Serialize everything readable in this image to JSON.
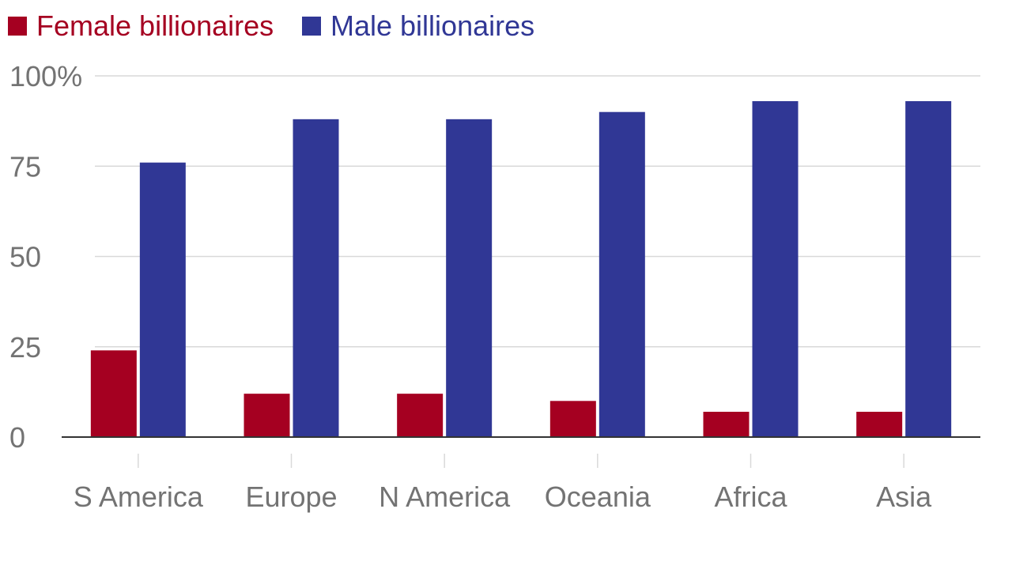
{
  "chart_data": {
    "type": "bar",
    "categories": [
      "S America",
      "Europe",
      "N America",
      "Oceania",
      "Africa",
      "Asia"
    ],
    "series": [
      {
        "name": "Female billionaires",
        "color": "#a50021",
        "values": [
          24,
          12,
          12,
          10,
          7,
          7
        ]
      },
      {
        "name": "Male billionaires",
        "color": "#303795",
        "values": [
          76,
          88,
          88,
          90,
          93,
          93
        ]
      }
    ],
    "yticks": [
      "0",
      "25",
      "50",
      "75",
      "100%"
    ],
    "ylim": [
      0,
      100
    ],
    "grid": true,
    "legend_position": "top-left",
    "colors": {
      "grid": "#d9d9d9",
      "axis": "#333333",
      "tick_text": "#737373"
    }
  }
}
